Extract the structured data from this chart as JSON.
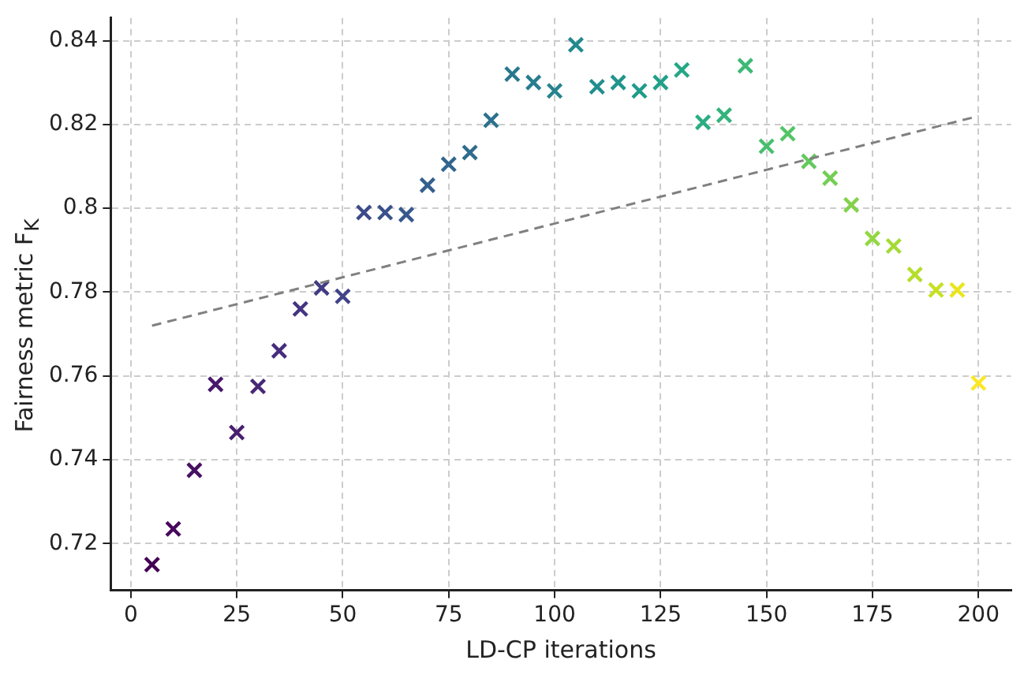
{
  "chart_data": {
    "type": "scatter",
    "xlabel": "LD-CP iterations",
    "ylabel": "Fairness metric F$_{K}$",
    "xlim": [
      -4.75,
      207.7
    ],
    "ylim": [
      0.7089,
      0.8454
    ],
    "xticks": [
      0,
      25,
      50,
      75,
      100,
      125,
      150,
      175,
      200
    ],
    "yticks": [
      0.72,
      0.74,
      0.76,
      0.78,
      0.8,
      0.82,
      0.84
    ],
    "grid": true,
    "marker": "cross",
    "series": [
      {
        "type": "scatter",
        "x": [
          5,
          10,
          15,
          20,
          25,
          30,
          35,
          40,
          45,
          50,
          55,
          60,
          65,
          70,
          75,
          80,
          85,
          90,
          95,
          100,
          105,
          110,
          115,
          120,
          125,
          130,
          135,
          140,
          145,
          150,
          155,
          160,
          165,
          170,
          175,
          180,
          185,
          190,
          195,
          200
        ],
        "values": [
          0.715,
          0.7235,
          0.7375,
          0.758,
          0.7465,
          0.7575,
          0.766,
          0.776,
          0.781,
          0.779,
          0.799,
          0.799,
          0.7985,
          0.8055,
          0.8105,
          0.8133,
          0.821,
          0.832,
          0.83,
          0.828,
          0.839,
          0.829,
          0.83,
          0.828,
          0.83,
          0.833,
          0.8205,
          0.8222,
          0.834,
          0.8148,
          0.8178,
          0.8112,
          0.8072,
          0.8008,
          0.7928,
          0.791,
          0.7842,
          0.7805,
          0.7805,
          0.7583
        ],
        "colors": [
          "#440154",
          "#46085c",
          "#471063",
          "#48186a",
          "#481f70",
          "#472677",
          "#462d7c",
          "#443482",
          "#423b85",
          "#404389",
          "#3d4a8a",
          "#3a518c",
          "#37588d",
          "#345f8d",
          "#31658e",
          "#2e6b8e",
          "#2b718e",
          "#29778e",
          "#277d8e",
          "#25838e",
          "#23898e",
          "#218f8d",
          "#20958c",
          "#1f9b8a",
          "#20a188",
          "#24a785",
          "#2aad81",
          "#32b37b",
          "#3db975",
          "#48be6e",
          "#55c466",
          "#63c95d",
          "#72ce54",
          "#82d24a",
          "#93d740",
          "#a4da35",
          "#b5de2b",
          "#c7e020",
          "#eae51a",
          "#fde725"
        ]
      },
      {
        "type": "line",
        "x": [
          5,
          200
        ],
        "values": [
          0.772,
          0.822
        ],
        "color": "#808080",
        "line_style": "dashed",
        "marker": "none"
      }
    ]
  }
}
